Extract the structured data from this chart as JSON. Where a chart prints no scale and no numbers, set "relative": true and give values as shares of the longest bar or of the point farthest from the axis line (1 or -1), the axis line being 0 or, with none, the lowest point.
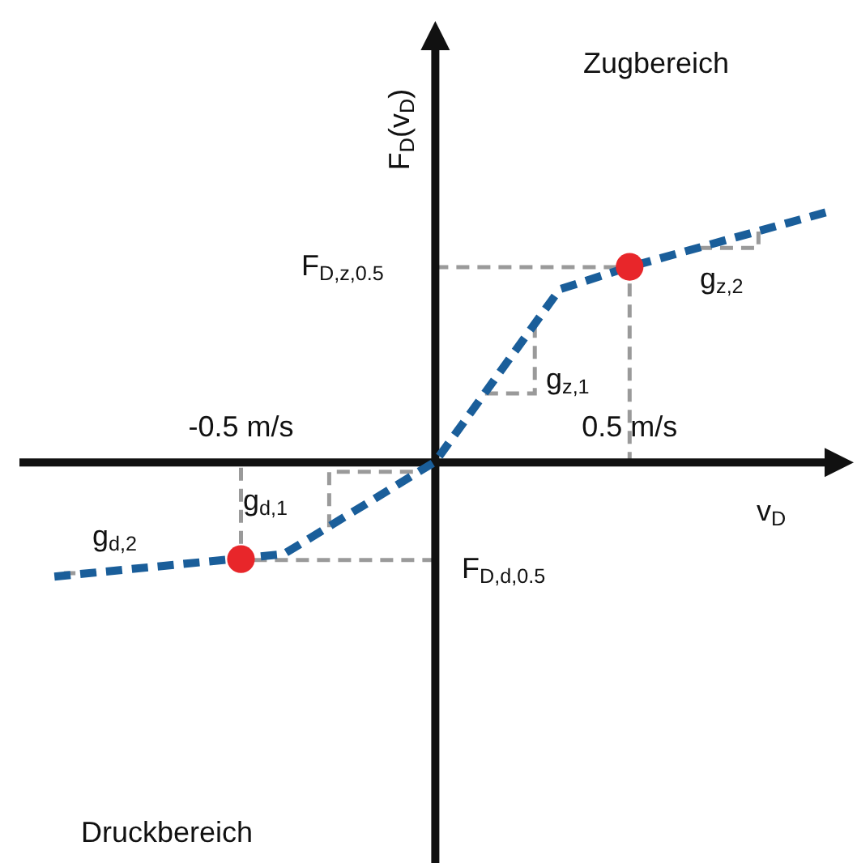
{
  "chart_data": {
    "type": "line",
    "relative": true,
    "xlabel": "v$_{D}$",
    "ylabel": "F$_{D}$(v$_{D}$)",
    "xlim": [
      -1.07,
      1.01
    ],
    "xticks": [
      {
        "value": -0.5,
        "label": "-0.5 m/s"
      },
      {
        "value": 0.5,
        "label": "0.5 m/s"
      }
    ],
    "series": [
      {
        "type": "line",
        "color": "#1a5e9a",
        "line_style": "dashed",
        "marker": "none",
        "x": [
          -0.98,
          -0.39,
          0,
          0.32,
          0.5,
          1.01
        ],
        "values": [
          -0.46,
          -0.37,
          0,
          0.69,
          0.78,
          1
        ]
      },
      {
        "type": "scatter",
        "color": "#e8262a",
        "marker": "circle",
        "x": [
          -0.5,
          0.5
        ],
        "values": [
          -0.39,
          0.78
        ]
      }
    ],
    "annotations": [
      "Zugbereich",
      "Druckbereich",
      "F$_{D,z,0.5}$",
      "g$_{z,2}$",
      "g$_{z,1}$",
      "g$_{d,1}$",
      "g$_{d,2}$",
      "F$_{D,d,0.5}$"
    ]
  }
}
